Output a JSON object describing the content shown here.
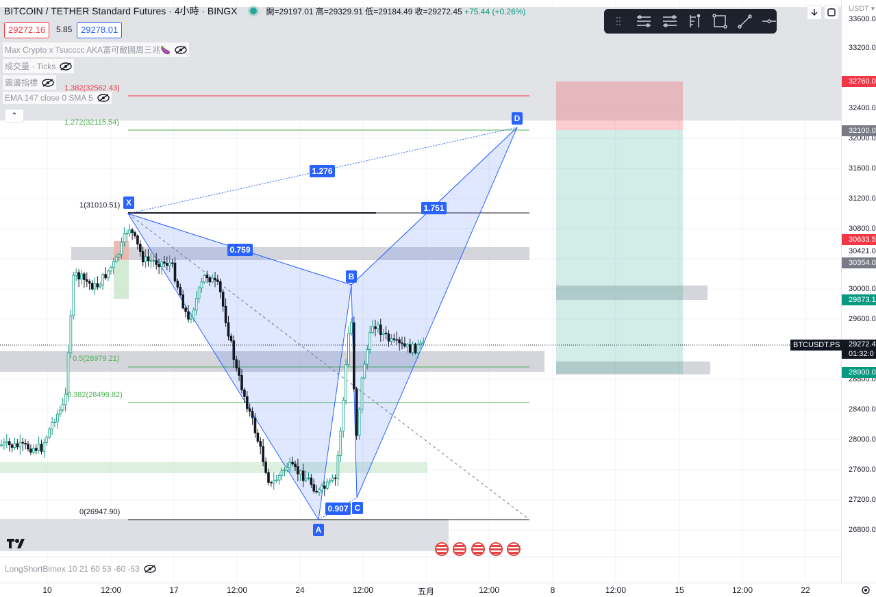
{
  "header": {
    "symbol_title": "BITCOIN / TETHER Standard Futures · 4小時 · BINGX",
    "ohlc": "開=29197.01 高=29329.91 低=29184.49 收=29272.45",
    "change": "+75.44 (+0.26%)",
    "bid": "29272.16",
    "spread": "5.85",
    "ask": "29278.01",
    "currency": "USDT ▾"
  },
  "indicators": [
    {
      "label": "Max Crypto x Tsucccc AKA富可敵國周三兆🍆"
    },
    {
      "label": "成交量 · Ticks"
    },
    {
      "label": "震盪指標"
    },
    {
      "label": "EMA 147 close 0 SMA 5"
    }
  ],
  "footer_indicator": {
    "label": "LongShortBimex 10 21 60 53 -60 -53"
  },
  "collapse_glyph": "⌃",
  "price_axis": {
    "labels": [
      "33600.00",
      "33200.00",
      "32400.00",
      "32000.00",
      "31600.00",
      "31200.00",
      "30800.00",
      "30000.00",
      "29600.00",
      "28800.00",
      "28400.00",
      "28000.00",
      "27600.00",
      "27200.00",
      "26800.00"
    ],
    "tags": [
      {
        "text": "32760.00",
        "color": "#f23645"
      },
      {
        "text": "32100.00",
        "color": "#787b86"
      },
      {
        "text": "30633.5",
        "color": "#f23645"
      },
      {
        "text": "30421.0",
        "color": "#ffffff"
      },
      {
        "text": "30354.0",
        "color": "#787b86"
      },
      {
        "text": "29873.1",
        "color": "#089981"
      },
      {
        "text": "29272.4",
        "color": "#131722"
      },
      {
        "text": "01:32:0",
        "color": "#131722"
      },
      {
        "text": "28900.0",
        "color": "#089981"
      }
    ],
    "symbol_tag": "BTCUSDT.PS"
  },
  "time_axis": {
    "labels": [
      "10",
      "12:00",
      "17",
      "12:00",
      "24",
      "12:00",
      "五月",
      "12:00",
      "8",
      "12:00",
      "15",
      "12:00",
      "22"
    ]
  },
  "fib_levels": [
    {
      "text": "1.382(32562.43)",
      "color": "#f23645"
    },
    {
      "text": "1.272(32115.54)",
      "color": "#4caf50"
    },
    {
      "text": "1(31010.51)",
      "color": "#131722"
    },
    {
      "text": "0.5(28979.21)",
      "color": "#4caf50"
    },
    {
      "text": "0.382(28499.82)",
      "color": "#4caf50"
    },
    {
      "text": "0(26947.90)",
      "color": "#131722"
    }
  ],
  "pattern": {
    "points": [
      "X",
      "A",
      "B",
      "C",
      "D"
    ],
    "ratios": [
      "1.276",
      "1.751",
      "0.759",
      "0.907"
    ]
  },
  "colors": {
    "accent": "#2962ff",
    "bull": "#089981",
    "bear": "#f23645"
  },
  "toolbar_icons": [
    "drag-handle-icon",
    "long-position-icon",
    "short-position-icon",
    "fib-tool-icon",
    "rectangle-icon",
    "trend-line-icon",
    "horizontal-line-icon"
  ],
  "top_right_buttons": [
    "download-icon",
    "snapshot-icon"
  ],
  "settings_icon": "gear-icon"
}
